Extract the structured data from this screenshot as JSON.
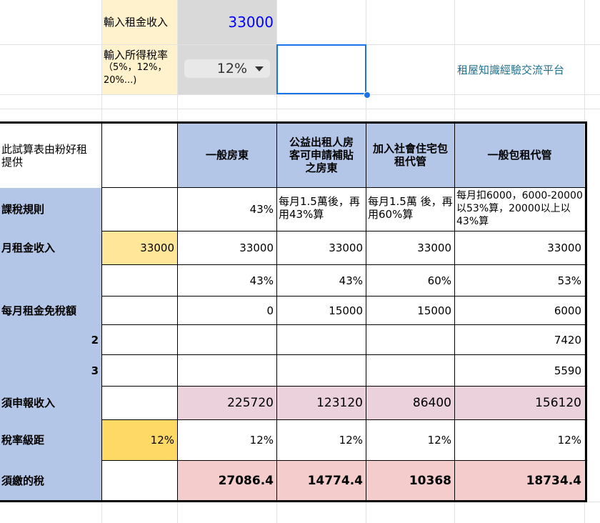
{
  "input_panel": {
    "rent_label": "輸入租金收入",
    "rent_value": "33000",
    "tax_rate_label": "輸入所得稅率",
    "tax_rate_hint": "（5%，12%，20%...)",
    "tax_rate_value": "12%",
    "platform_name": "租屋知識經驗交流平台"
  },
  "table": {
    "note": "此試算表由粉好租提供",
    "columns": [
      "一般房東",
      "公益出租人房客可申請補貼之房東",
      "加入社會住宅包租代管",
      "一般包租代管"
    ],
    "rows": {
      "tax_rule": {
        "label": "課稅規則",
        "values": [
          "43%",
          "每月1.5萬後，再用43%算",
          "每月1.5萬 後，再用60%算",
          "每月扣6000，6000-20000 以53%算，20000以上以43%算"
        ]
      },
      "monthly_rent": {
        "label": "月租金收入",
        "input": "33000",
        "values": [
          "33000",
          "33000",
          "33000",
          "33000"
        ]
      },
      "rate": {
        "values": [
          "43%",
          "43%",
          "60%",
          "53%"
        ]
      },
      "exempt": {
        "label": "每月租金免稅額",
        "values": [
          "0",
          "15000",
          "15000",
          "6000"
        ]
      },
      "row2": {
        "label": "2",
        "values": [
          "",
          "",
          "",
          "7420"
        ]
      },
      "row3": {
        "label": "3",
        "values": [
          "",
          "",
          "",
          "5590"
        ]
      },
      "taxable": {
        "label": "須申報收入",
        "values": [
          "225720",
          "123120",
          "86400",
          "156120"
        ]
      },
      "bracket": {
        "label": "稅率級距",
        "input": "12%",
        "values": [
          "12%",
          "12%",
          "12%",
          "12%"
        ]
      },
      "tax_due": {
        "label": "須繳的稅",
        "values": [
          "27086.4",
          "14774.4",
          "10368",
          "18734.4"
        ]
      }
    }
  },
  "colors": {
    "label_blue": "#b4c6e7",
    "header_blue": "#b4c6e7",
    "input_gray": "#d9d9d9",
    "cream": "#fff2cc",
    "yellow": "#ffe699",
    "pink": "#ead1dc",
    "red_pink": "#f4cccc",
    "value_blue": "#0000ff",
    "link_teal": "#1f6f8b"
  }
}
